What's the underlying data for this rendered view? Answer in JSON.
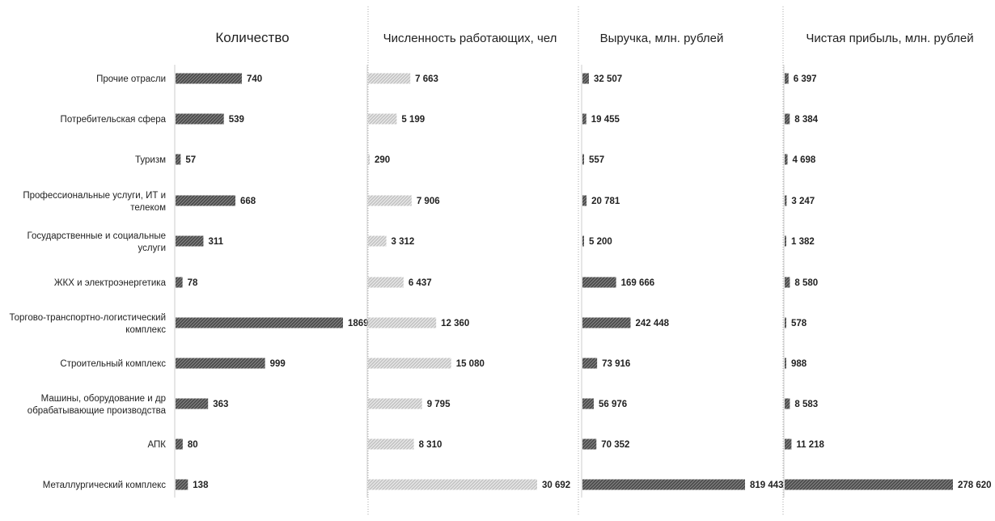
{
  "chart_data": {
    "type": "bar",
    "orientation": "horizontal",
    "grid": false,
    "legend": "none",
    "categories": [
      "Прочие отрасли",
      "Потребительская сфера",
      "Туризм",
      "Профессиональные услуги, ИТ и телеком",
      "Государственные и социальные услуги",
      "ЖКХ и электроэнергетика",
      "Торгово-транспортно-логистический комплекс",
      "Строительный комплекс",
      "Машины, оборудование и др обрабатывающие производства",
      "АПК",
      "Металлургический комплекс"
    ],
    "category_lines": [
      [
        "Прочие отрасли"
      ],
      [
        "Потребительская сфера"
      ],
      [
        "Туризм"
      ],
      [
        "Профессиональные услуги, ИТ и",
        "телеком"
      ],
      [
        "Государственные и социальные",
        "услуги"
      ],
      [
        "ЖКХ и электроэнергетика"
      ],
      [
        "Торгово-транспортно-логистический",
        "комплекс"
      ],
      [
        "Строительный комплекс"
      ],
      [
        "Машины, оборудование и др",
        "обрабатывающие производства"
      ],
      [
        "АПК"
      ],
      [
        "Металлургический комплекс"
      ]
    ],
    "panels": [
      {
        "title": "Количество",
        "color": "#555555",
        "values": [
          740,
          539,
          57,
          668,
          311,
          78,
          1869,
          999,
          363,
          80,
          138
        ],
        "labels": [
          "740",
          "539",
          "57",
          "668",
          "311",
          "78",
          "1869",
          "999",
          "363",
          "80",
          "138"
        ]
      },
      {
        "title": "Численность работающих, чел",
        "color": "#b8b8b8",
        "values": [
          7663,
          5199,
          290,
          7906,
          3312,
          6437,
          12360,
          15080,
          9795,
          8310,
          30692
        ],
        "labels": [
          "7 663",
          "5 199",
          "290",
          "7 906",
          "3 312",
          "6 437",
          "12 360",
          "15 080",
          "9 795",
          "8 310",
          "30 692"
        ]
      },
      {
        "title": "Выручка, млн. рублей",
        "color": "#555555",
        "values": [
          32507,
          19455,
          557,
          20781,
          5200,
          169666,
          242448,
          73916,
          56976,
          70352,
          819443
        ],
        "labels": [
          "32 507",
          "19 455",
          "557",
          "20 781",
          "5 200",
          "169 666",
          "242 448",
          "73 916",
          "56 976",
          "70 352",
          "819 443"
        ]
      },
      {
        "title": "Чистая прибыль, млн. рублей",
        "color": "#555555",
        "values": [
          6397,
          8384,
          4698,
          3247,
          1382,
          8580,
          578,
          988,
          8583,
          11218,
          278620
        ],
        "labels": [
          "6 397",
          "8 384",
          "4 698",
          "3 247",
          "1 382",
          "8 580",
          "578",
          "988",
          "8 583",
          "11 218",
          "278 620"
        ]
      }
    ]
  }
}
